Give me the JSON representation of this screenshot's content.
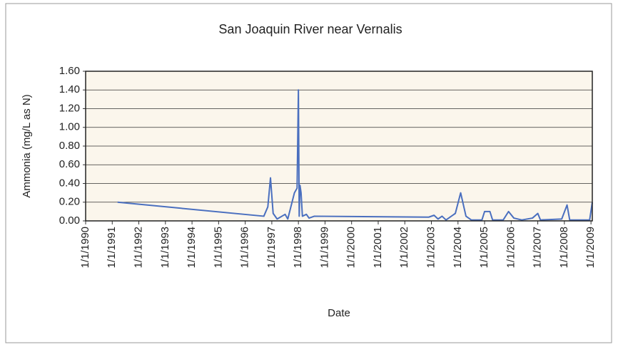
{
  "chart_data": {
    "type": "line",
    "title": "San Joaquin River near Vernalis",
    "xlabel": "Date",
    "ylabel": "Ammonia (mg/L as N)",
    "x": [
      1991.2,
      1996.7,
      1996.85,
      1996.95,
      1997.05,
      1997.2,
      1997.5,
      1997.6,
      1997.85,
      1997.95,
      1998.0,
      1998.03,
      1998.06,
      1998.1,
      1998.15,
      1998.3,
      1998.4,
      1998.6,
      2002.9,
      2003.1,
      2003.25,
      2003.4,
      2003.55,
      2003.9,
      2004.1,
      2004.3,
      2004.5,
      2004.9,
      2005.0,
      2005.2,
      2005.3,
      2005.7,
      2005.9,
      2006.1,
      2006.4,
      2006.8,
      2007.0,
      2007.1,
      2007.9,
      2008.1,
      2008.2,
      2008.95,
      2009.05
    ],
    "series": [
      {
        "name": "Ammonia",
        "color": "#4a6fbf",
        "values": [
          0.2,
          0.05,
          0.15,
          0.46,
          0.08,
          0.02,
          0.07,
          0.02,
          0.3,
          0.35,
          1.4,
          0.05,
          0.38,
          0.3,
          0.05,
          0.07,
          0.03,
          0.05,
          0.04,
          0.06,
          0.02,
          0.05,
          0.01,
          0.08,
          0.3,
          0.05,
          0.01,
          0.01,
          0.1,
          0.1,
          0.01,
          0.01,
          0.1,
          0.03,
          0.01,
          0.03,
          0.08,
          0.01,
          0.02,
          0.17,
          0.01,
          0.01,
          0.2
        ]
      }
    ],
    "xlim": [
      1990,
      2009.05
    ],
    "xticks": [
      {
        "value": 1990,
        "label": "1/1/1990"
      },
      {
        "value": 1991,
        "label": "1/1/1991"
      },
      {
        "value": 1992,
        "label": "1/1/1992"
      },
      {
        "value": 1993,
        "label": "1/1/1993"
      },
      {
        "value": 1994,
        "label": "1/1/1994"
      },
      {
        "value": 1995,
        "label": "1/1/1995"
      },
      {
        "value": 1996,
        "label": "1/1/1996"
      },
      {
        "value": 1997,
        "label": "1/1/1997"
      },
      {
        "value": 1998,
        "label": "1/1/1998"
      },
      {
        "value": 1999,
        "label": "1/1/1999"
      },
      {
        "value": 2000,
        "label": "1/1/2000"
      },
      {
        "value": 2001,
        "label": "1/1/2001"
      },
      {
        "value": 2002,
        "label": "1/1/2002"
      },
      {
        "value": 2003,
        "label": "1/1/2003"
      },
      {
        "value": 2004,
        "label": "1/1/2004"
      },
      {
        "value": 2005,
        "label": "1/1/2005"
      },
      {
        "value": 2006,
        "label": "1/1/2006"
      },
      {
        "value": 2007,
        "label": "1/1/2007"
      },
      {
        "value": 2008,
        "label": "1/1/2008"
      },
      {
        "value": 2009,
        "label": "1/1/2009"
      }
    ],
    "ylim": [
      0,
      1.6
    ],
    "yticks": [
      {
        "value": 0,
        "label": "0.00"
      },
      {
        "value": 0.2,
        "label": "0.20"
      },
      {
        "value": 0.4,
        "label": "0.40"
      },
      {
        "value": 0.6,
        "label": "0.60"
      },
      {
        "value": 0.8,
        "label": "0.80"
      },
      {
        "value": 1.0,
        "label": "1.00"
      },
      {
        "value": 1.2,
        "label": "1.20"
      },
      {
        "value": 1.4,
        "label": "1.40"
      },
      {
        "value": 1.6,
        "label": "1.60"
      }
    ],
    "grid": true
  }
}
